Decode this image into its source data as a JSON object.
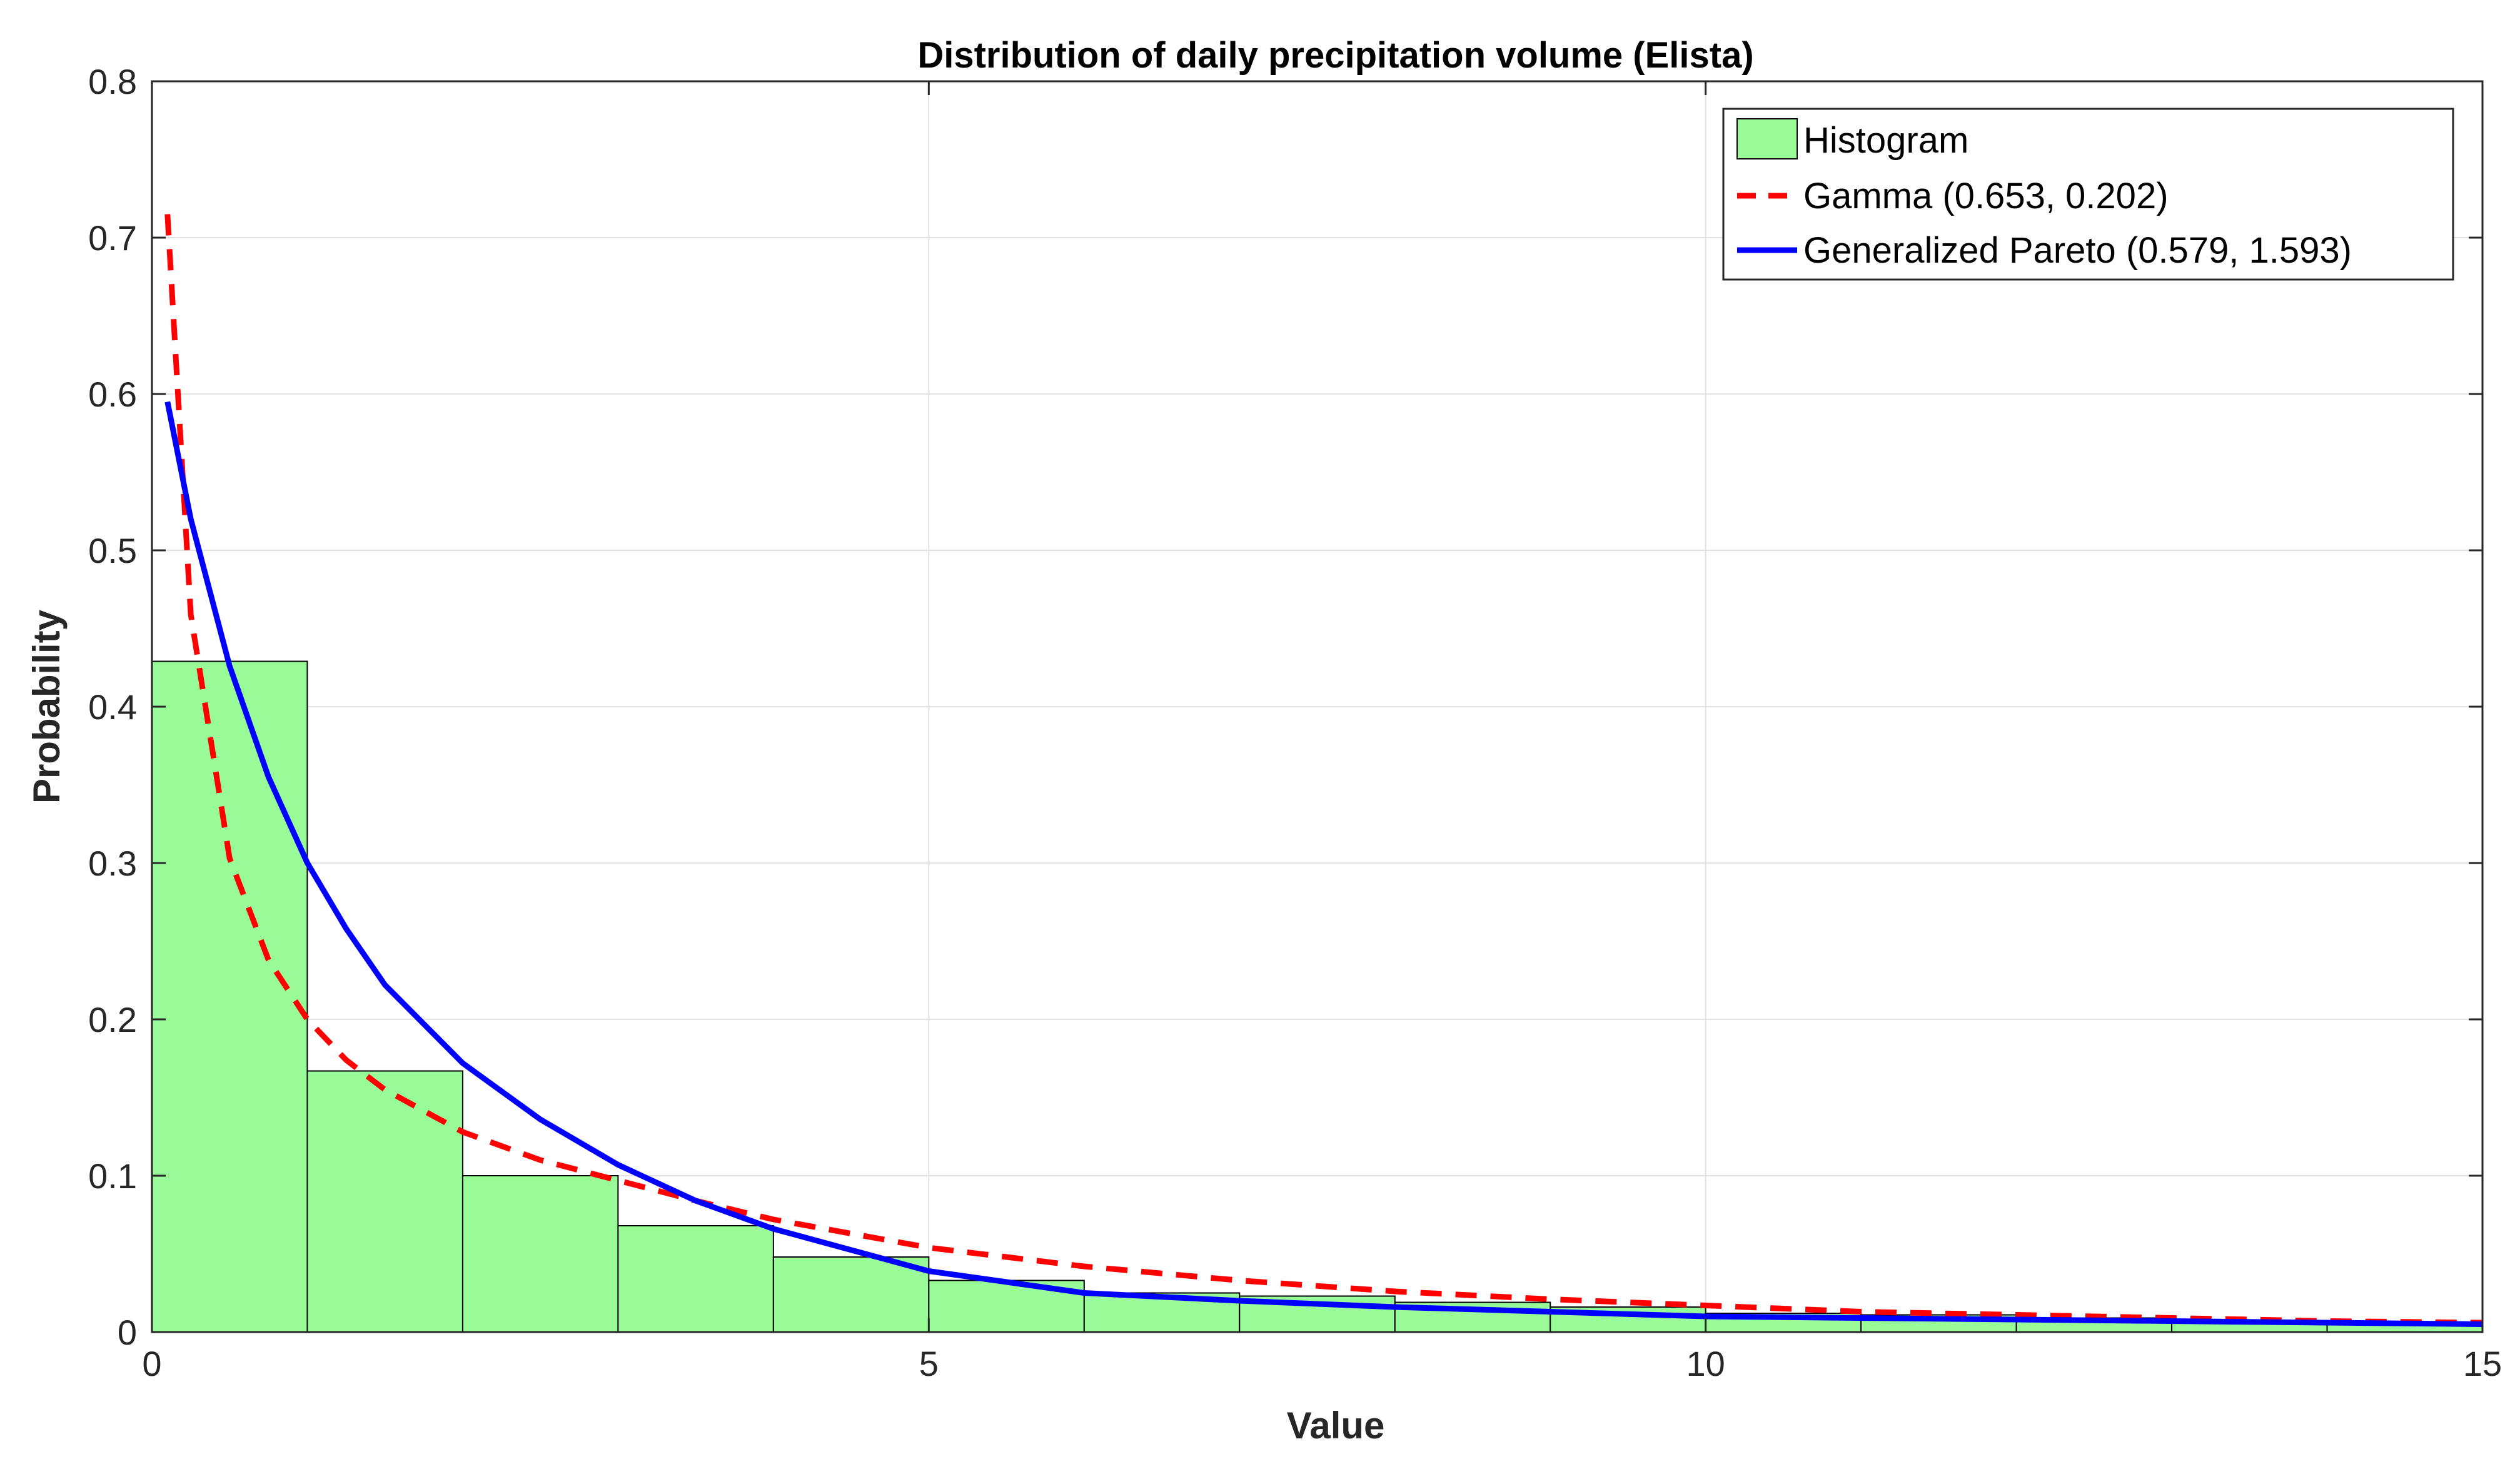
{
  "chart_data": {
    "type": "bar",
    "title": "Distribution of daily precipitation volume (Elista)",
    "xlabel": "Value",
    "ylabel": "Probability",
    "xlim": [
      0,
      15
    ],
    "ylim": [
      0,
      0.8
    ],
    "xticks": [
      0,
      5,
      10,
      15
    ],
    "yticks": [
      0,
      0.1,
      0.2,
      0.3,
      0.4,
      0.5,
      0.6,
      0.7,
      0.8
    ],
    "xtick_labels": [
      "0",
      "5",
      "10",
      "15"
    ],
    "ytick_labels": [
      "0",
      "0.1",
      "0.2",
      "0.3",
      "0.4",
      "0.5",
      "0.6",
      "0.7",
      "0.8"
    ],
    "grid": true,
    "legend_position": "top-right",
    "histogram": {
      "name": "Histogram",
      "color": "#98fb98",
      "bin_edges": [
        0,
        1,
        2,
        3,
        4,
        5,
        6,
        7,
        8,
        9,
        10,
        11,
        12,
        13,
        14,
        15
      ],
      "values": [
        0.429,
        0.167,
        0.1,
        0.068,
        0.048,
        0.033,
        0.025,
        0.023,
        0.019,
        0.016,
        0.012,
        0.011,
        0.009,
        0.007,
        0.006
      ]
    },
    "series": [
      {
        "name": "Gamma (0.653, 0.202)",
        "type": "line",
        "style": "dashed",
        "color": "#ff0000",
        "x": [
          0.1,
          0.25,
          0.5,
          0.75,
          1,
          1.25,
          1.5,
          2,
          2.5,
          3,
          3.5,
          4,
          5,
          6,
          7,
          8,
          9,
          10,
          11,
          12,
          13,
          14,
          15
        ],
        "values": [
          0.715,
          0.459,
          0.303,
          0.238,
          0.2,
          0.174,
          0.155,
          0.128,
          0.11,
          0.097,
          0.084,
          0.072,
          0.054,
          0.042,
          0.033,
          0.026,
          0.021,
          0.017,
          0.013,
          0.011,
          0.009,
          0.007,
          0.006
        ]
      },
      {
        "name": "Generalized Pareto (0.579, 1.593)",
        "type": "line",
        "style": "solid",
        "color": "#0000ff",
        "x": [
          0.1,
          0.25,
          0.5,
          0.75,
          1,
          1.25,
          1.5,
          2,
          2.5,
          3,
          3.5,
          4,
          5,
          6,
          7,
          8,
          9,
          10,
          11,
          12,
          13,
          14,
          15
        ],
        "values": [
          0.595,
          0.52,
          0.426,
          0.355,
          0.3,
          0.258,
          0.222,
          0.172,
          0.136,
          0.107,
          0.084,
          0.066,
          0.039,
          0.025,
          0.02,
          0.016,
          0.013,
          0.01,
          0.009,
          0.008,
          0.007,
          0.006,
          0.005
        ]
      }
    ],
    "colors": {
      "axis": "#262626",
      "grid": "#e2e2e2",
      "bar_edge": "#000000"
    }
  }
}
